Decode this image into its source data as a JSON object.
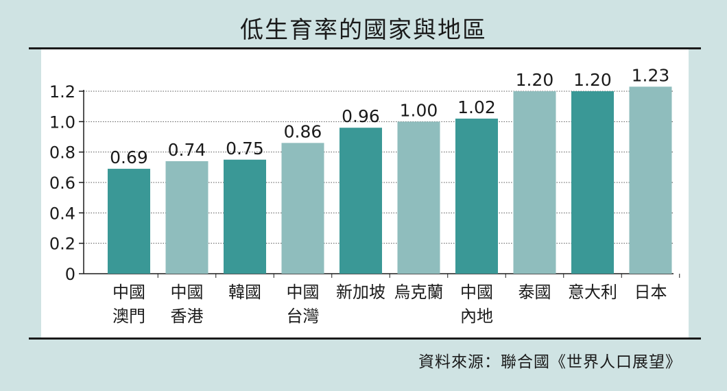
{
  "title": "低生育率的國家與地區",
  "source": "資料來源：聯合國《世界人口展望》",
  "colors": {
    "background": "#cfe3e3",
    "panel": "#ffffff",
    "dark_teal": "#3a9896",
    "light_teal": "#8fbdbd",
    "text": "#1a1a1a"
  },
  "chart_data": {
    "type": "bar",
    "title": "低生育率的國家與地區",
    "xlabel": "",
    "ylabel": "",
    "ylim": [
      0,
      1.2
    ],
    "yticks": [
      "0",
      "0.2",
      "0.4",
      "0.6",
      "0.8",
      "1.0",
      "1.2"
    ],
    "grid": true,
    "categories": [
      [
        "中國",
        "澳門"
      ],
      [
        "中國",
        "香港"
      ],
      [
        "韓國"
      ],
      [
        "中國",
        "台灣"
      ],
      [
        "新加坡"
      ],
      [
        "烏克蘭"
      ],
      [
        "中國",
        "內地"
      ],
      [
        "泰國"
      ],
      [
        "意大利"
      ],
      [
        "日本"
      ]
    ],
    "values": [
      0.69,
      0.74,
      0.75,
      0.86,
      0.96,
      1.0,
      1.02,
      1.2,
      1.2,
      1.23
    ],
    "value_labels": [
      "0.69",
      "0.74",
      "0.75",
      "0.86",
      "0.96",
      "1.00",
      "1.02",
      "1.20",
      "1.20",
      "1.23"
    ],
    "bar_colors": [
      "dark",
      "light",
      "dark",
      "light",
      "dark",
      "light",
      "dark",
      "light",
      "dark",
      "light"
    ]
  }
}
